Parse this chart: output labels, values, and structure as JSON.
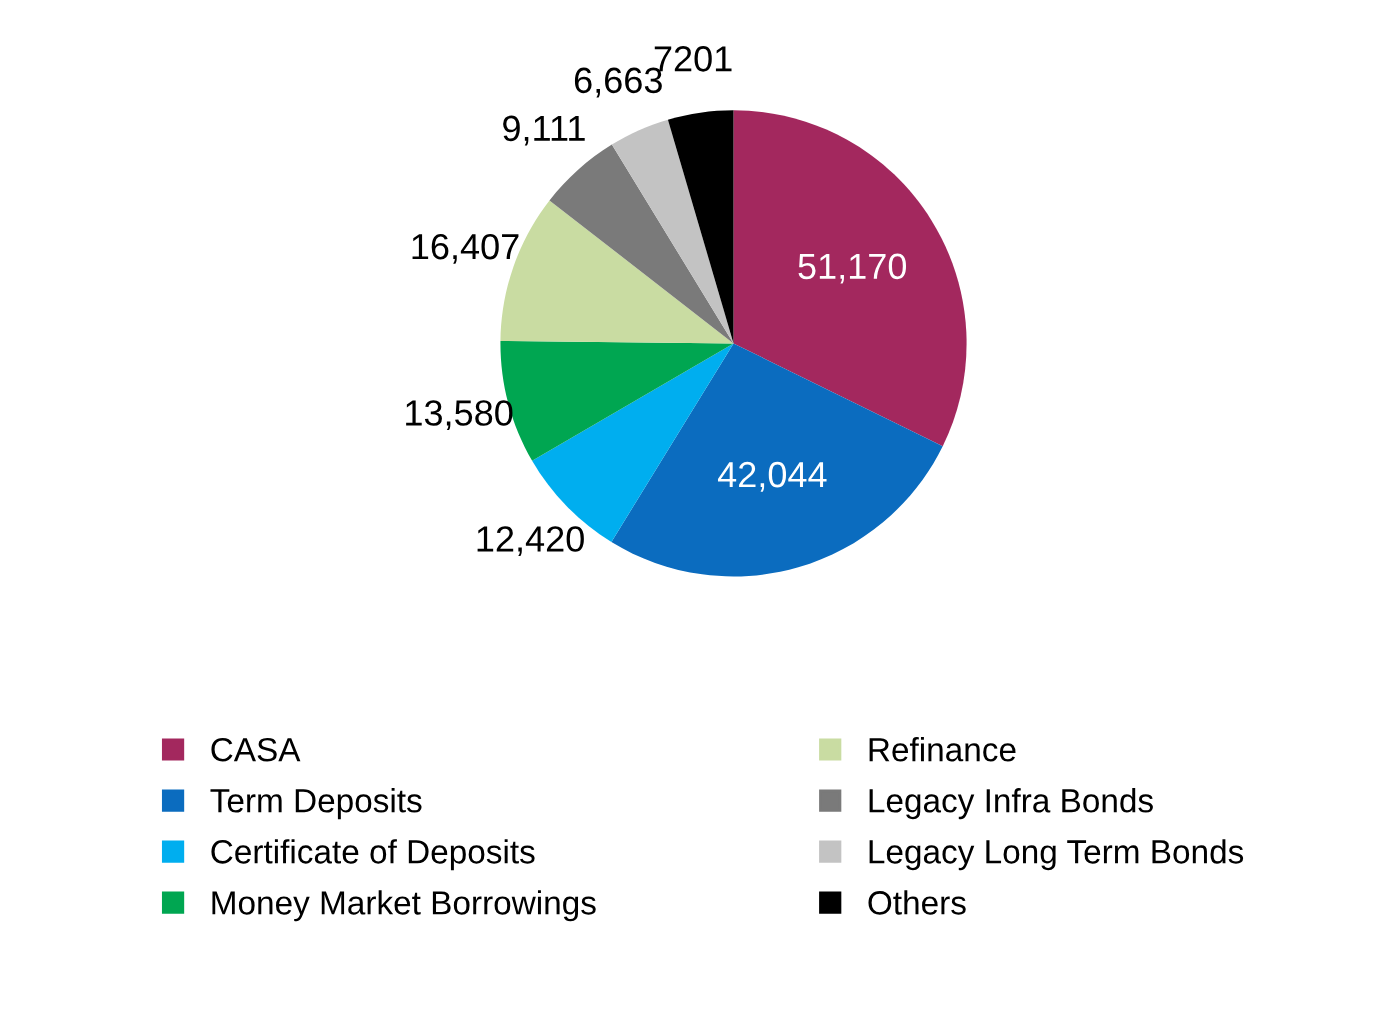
{
  "chart_data": {
    "type": "pie",
    "categories": [
      "CASA",
      "Term Deposits",
      "Certificate of Deposits",
      "Money Market Borrowings",
      "Refinance",
      "Legacy Infra Bonds",
      "Legacy Long Term Bonds",
      "Others"
    ],
    "values": [
      51170,
      42044,
      12420,
      13580,
      16407,
      9111,
      6663,
      7201
    ],
    "value_labels": [
      "51,170",
      "42,044",
      "12,420",
      "13,580",
      "16,407",
      "9,111",
      "6,663",
      "7201"
    ],
    "colors": [
      "#a3285e",
      "#0b6cbf",
      "#00aeef",
      "#00a651",
      "#c9dca2",
      "#7a7a7a",
      "#c3c3c3",
      "#000000"
    ],
    "legend": "bottom"
  }
}
